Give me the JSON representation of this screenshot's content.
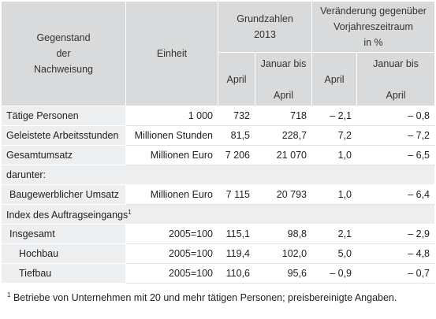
{
  "header": {
    "gegenstand": [
      "Gegenstand",
      "der",
      "Nachweisung"
    ],
    "einheit": "Einheit",
    "grundzahlen": "Grundzahlen",
    "year": "2013",
    "veraenderung": [
      "Veränderung gegenüber",
      "Vorjahreszeitraum",
      "in %"
    ],
    "april": "April",
    "januar_bis": [
      "Januar bis",
      "April"
    ]
  },
  "rows": [
    {
      "label": "Tätige Personen",
      "unit": "1 000",
      "v1": "732",
      "v2": "718",
      "v3": "– 2,1",
      "v4": "– 0,8"
    },
    {
      "label": "Geleistete Arbeitsstunden",
      "unit": "Millionen Stunden",
      "v1": "81,5",
      "v2": "228,7",
      "v3": "7,2",
      "v4": "– 7,2"
    },
    {
      "label": "Gesamtumsatz",
      "unit": "Millionen Euro",
      "v1": "7 206",
      "v2": "21 070",
      "v3": "1,0",
      "v4": "– 6,5"
    },
    {
      "label": "Baugewerblicher Umsatz",
      "unit": "Millionen Euro",
      "v1": "7 115",
      "v2": "20 793",
      "v3": "1,0",
      "v4": "– 6,4"
    },
    {
      "label": "Insgesamt",
      "unit": "2005=100",
      "v1": "115,1",
      "v2": "98,8",
      "v3": "2,1",
      "v4": "– 2,9"
    },
    {
      "label": "Hochbau",
      "unit": "2005=100",
      "v1": "119,4",
      "v2": "102,0",
      "v3": "5,0",
      "v4": "– 4,8"
    },
    {
      "label": "Tiefbau",
      "unit": "2005=100",
      "v1": "110,6",
      "v2": "95,6",
      "v3": "– 0,9",
      "v4": "– 0,7"
    }
  ],
  "sections": {
    "darunter": "darunter:",
    "index": "Index des Auftragseingangs",
    "index_sup": "1"
  },
  "footnote": {
    "sup": "1",
    "text": "Betriebe von Unternehmen mit 20 und mehr tätigen Personen; preisbereinigte Angaben."
  }
}
